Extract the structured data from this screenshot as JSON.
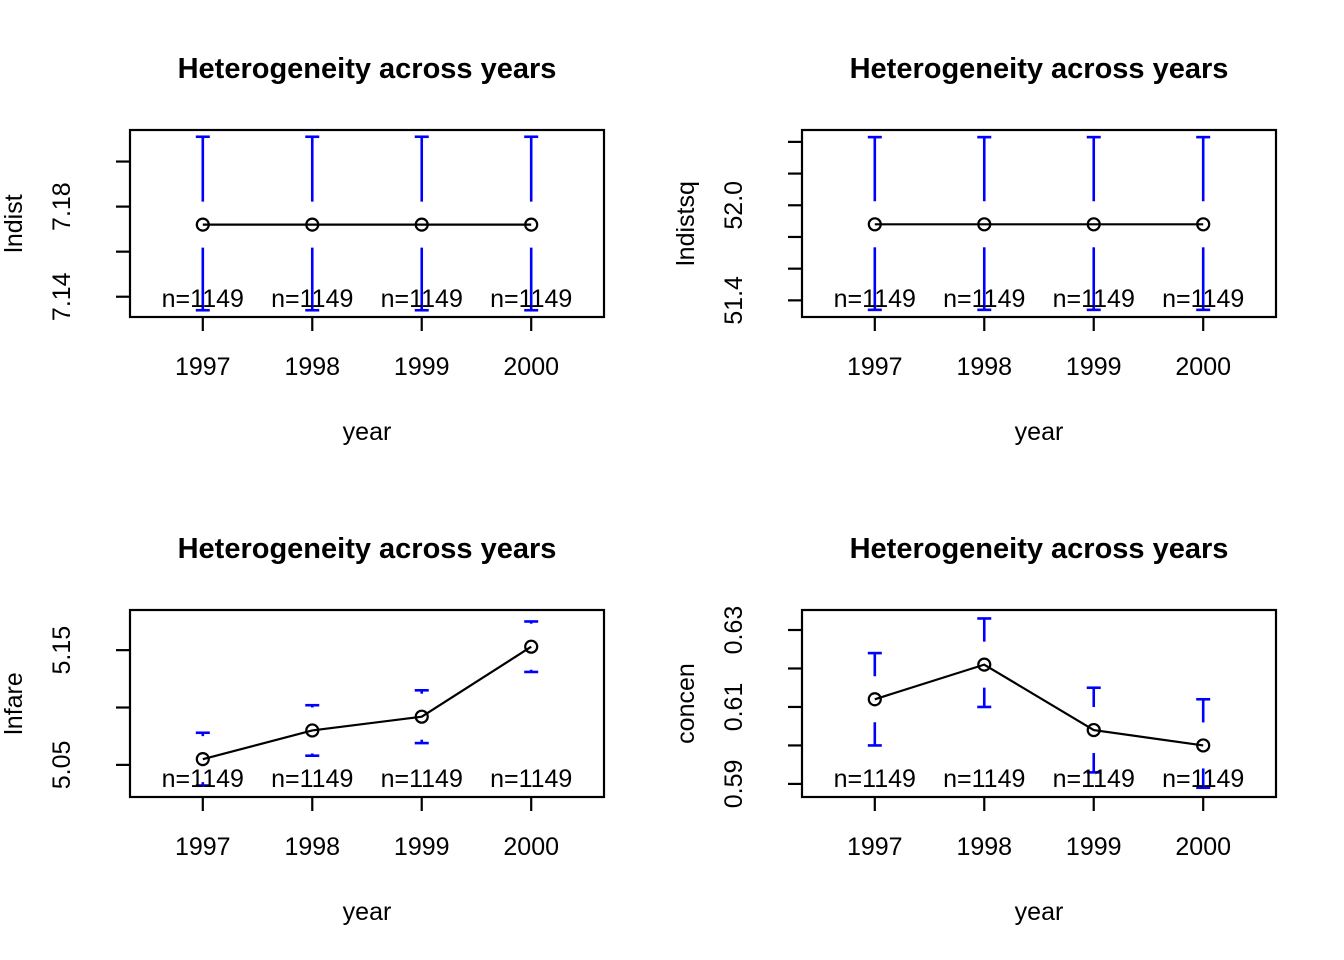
{
  "page": {
    "background": "#FFFFFF"
  },
  "colors": {
    "errorbar": "#0000FF",
    "line": "#000000",
    "point": "#000000",
    "text": "#000000",
    "frame": "#000000"
  },
  "chart_data": [
    {
      "type": "line",
      "title": "Heterogeneity across years",
      "xlabel": "year",
      "ylabel": "lndist",
      "x": [
        1997,
        1998,
        1999,
        2000
      ],
      "xtick_labels": [
        "1997",
        "1998",
        "1999",
        "2000"
      ],
      "means": [
        7.172,
        7.172,
        7.172,
        7.172
      ],
      "ci_upper": [
        7.211,
        7.211,
        7.211,
        7.211
      ],
      "ci_lower": [
        7.134,
        7.134,
        7.134,
        7.134
      ],
      "n_labels": [
        "n=1149",
        "n=1149",
        "n=1149",
        "n=1149"
      ],
      "xlim": [
        1996.335,
        2000.665
      ],
      "ylim": [
        7.131,
        7.214
      ],
      "yticks": [
        7.14,
        7.16,
        7.18,
        7.2
      ],
      "ytick_labels": [
        "7.14",
        "",
        "7.18",
        ""
      ],
      "grid": false,
      "legend": null
    },
    {
      "type": "line",
      "title": "Heterogeneity across years",
      "xlabel": "year",
      "ylabel": "lndistsq",
      "x": [
        1997,
        1998,
        1999,
        2000
      ],
      "xtick_labels": [
        "1997",
        "1998",
        "1999",
        "2000"
      ],
      "means": [
        51.88,
        51.88,
        51.88,
        51.88
      ],
      "ci_upper": [
        52.43,
        52.43,
        52.43,
        52.43
      ],
      "ci_lower": [
        51.34,
        51.34,
        51.34,
        51.34
      ],
      "n_labels": [
        "n=1149",
        "n=1149",
        "n=1149",
        "n=1149"
      ],
      "xlim": [
        1996.335,
        2000.665
      ],
      "ylim": [
        51.295,
        52.475
      ],
      "yticks": [
        51.4,
        51.6,
        51.8,
        52.0,
        52.2,
        52.4
      ],
      "ytick_labels": [
        "51.4",
        "",
        "",
        "52.0",
        "",
        ""
      ],
      "grid": false,
      "legend": null
    },
    {
      "type": "line",
      "title": "Heterogeneity across years",
      "xlabel": "year",
      "ylabel": "lnfare",
      "x": [
        1997,
        1998,
        1999,
        2000
      ],
      "xtick_labels": [
        "1997",
        "1998",
        "1999",
        "2000"
      ],
      "means": [
        5.055,
        5.08,
        5.092,
        5.153
      ],
      "ci_upper": [
        5.078,
        5.102,
        5.115,
        5.175
      ],
      "ci_lower": [
        5.032,
        5.058,
        5.069,
        5.131
      ],
      "n_labels": [
        "n=1149",
        "n=1149",
        "n=1149",
        "n=1149"
      ],
      "xlim": [
        1996.335,
        2000.665
      ],
      "ylim": [
        5.022,
        5.185
      ],
      "yticks": [
        5.05,
        5.1,
        5.15
      ],
      "ytick_labels": [
        "5.05",
        "",
        "5.15"
      ],
      "grid": false,
      "legend": null
    },
    {
      "type": "line",
      "title": "Heterogeneity across years",
      "xlabel": "year",
      "ylabel": "concen",
      "x": [
        1997,
        1998,
        1999,
        2000
      ],
      "xtick_labels": [
        "1997",
        "1998",
        "1999",
        "2000"
      ],
      "means": [
        0.612,
        0.621,
        0.604,
        0.6
      ],
      "ci_upper": [
        0.624,
        0.633,
        0.615,
        0.612
      ],
      "ci_lower": [
        0.6,
        0.61,
        0.593,
        0.589
      ],
      "n_labels": [
        "n=1149",
        "n=1149",
        "n=1149",
        "n=1149"
      ],
      "xlim": [
        1996.335,
        2000.665
      ],
      "ylim": [
        0.5866,
        0.6352
      ],
      "yticks": [
        0.59,
        0.6,
        0.61,
        0.62,
        0.63
      ],
      "ytick_labels": [
        "0.59",
        "",
        "0.61",
        "",
        "0.63"
      ],
      "grid": false,
      "legend": null
    }
  ]
}
